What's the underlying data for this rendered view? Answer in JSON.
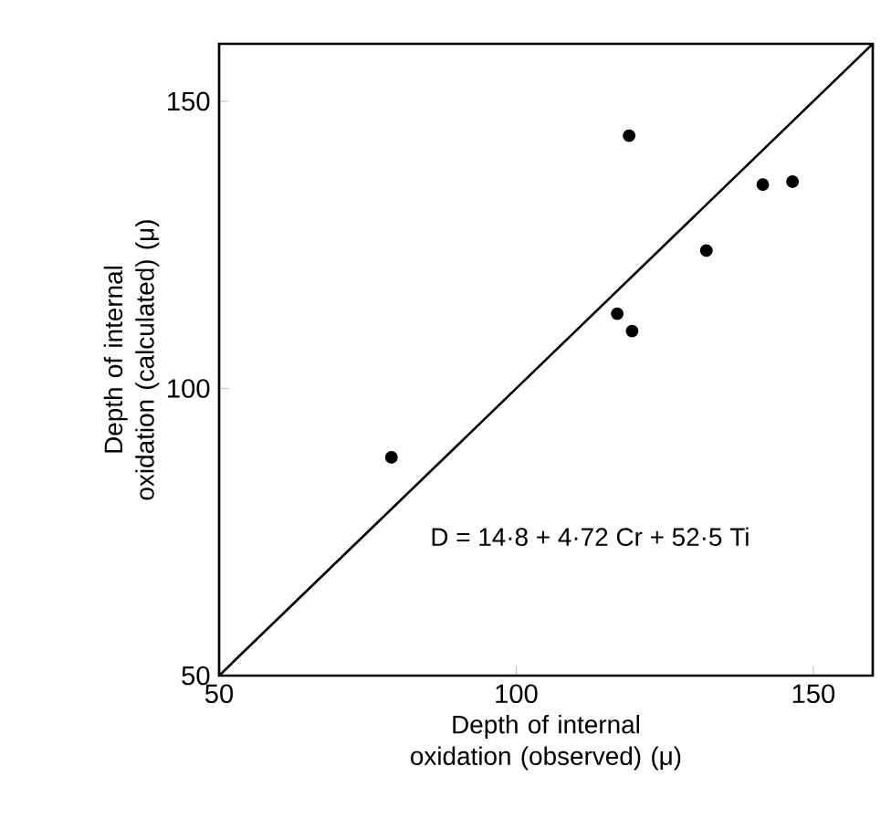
{
  "chart_data": {
    "type": "scatter",
    "xlabel": "Depth of internal oxidation (observed) (μ)",
    "ylabel": "Depth of internal oxidation (calculated) (μ)",
    "annotations": [
      "D = 14·8 + 4·72 Cr + 52·5 Ti"
    ],
    "xlim": [
      50,
      160
    ],
    "ylim": [
      50,
      160
    ],
    "xticks": [
      50,
      100,
      150
    ],
    "yticks": [
      50,
      100,
      150
    ],
    "series": [
      {
        "color": "#000000",
        "marker": "circle",
        "x": [
          79,
          119,
          117,
          119.5,
          132,
          141.5,
          146.5
        ],
        "values": [
          88,
          144,
          113,
          110,
          124,
          135.5,
          136
        ]
      },
      {
        "type": "line",
        "color": "#000000",
        "marker": "none",
        "line_style": "solid",
        "x": [
          50,
          160
        ],
        "values": [
          50,
          160
        ]
      }
    ]
  }
}
